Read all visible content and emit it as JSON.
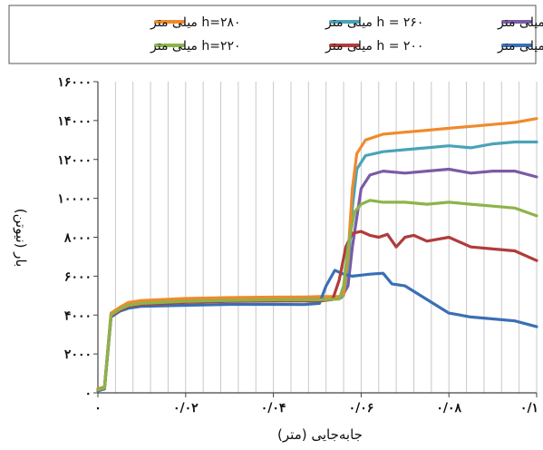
{
  "chart_data": {
    "type": "line",
    "xlabel": "جابه‌جایی (متر)",
    "ylabel": "بار (نیوتن)",
    "xlim": [
      0,
      0.1
    ],
    "ylim": [
      0,
      16000
    ],
    "x_ticks": [
      0,
      0.02,
      0.04,
      0.06,
      0.08,
      0.1
    ],
    "x_tick_labels": [
      "۰",
      "۰/۰۲",
      "۰/۰۴",
      "۰/۰۶",
      "۰/۰۸",
      "۰/۱"
    ],
    "y_ticks": [
      0,
      2000,
      4000,
      6000,
      8000,
      10000,
      12000,
      14000,
      16000
    ],
    "y_tick_labels": [
      "۰",
      "۲۰۰۰",
      "۴۰۰۰",
      "۶۰۰۰",
      "۸۰۰۰",
      "۱۰۰۰۰",
      "۱۲۰۰۰",
      "۱۴۰۰۰",
      "۱۶۰۰۰"
    ],
    "grid": "vertical",
    "legend_position": "top",
    "series": [
      {
        "name": "h = ۲۴۰ میلی متر",
        "color": "#7b5aa6",
        "x": [
          0,
          0.0015,
          0.003,
          0.005,
          0.007,
          0.01,
          0.02,
          0.03,
          0.04,
          0.047,
          0.0505,
          0.054,
          0.0555,
          0.057,
          0.058,
          0.06,
          0.062,
          0.065,
          0.07,
          0.075,
          0.08,
          0.085,
          0.09,
          0.095,
          0.1
        ],
        "y": [
          200,
          300,
          4000,
          4300,
          4550,
          4650,
          4750,
          4800,
          4820,
          4830,
          4830,
          4850,
          4900,
          5500,
          7500,
          10500,
          11200,
          11400,
          11300,
          11400,
          11500,
          11300,
          11400,
          11400,
          11100
        ]
      },
      {
        "name": "h = ۲۶۰ میلی متر",
        "color": "#4aa3b8",
        "x": [
          0,
          0.0015,
          0.003,
          0.005,
          0.007,
          0.01,
          0.02,
          0.03,
          0.04,
          0.047,
          0.0505,
          0.055,
          0.056,
          0.057,
          0.058,
          0.059,
          0.061,
          0.065,
          0.07,
          0.075,
          0.08,
          0.085,
          0.09,
          0.095,
          0.1
        ],
        "y": [
          200,
          300,
          4050,
          4350,
          4600,
          4700,
          4800,
          4850,
          4870,
          4880,
          4880,
          4900,
          5000,
          6500,
          9500,
          11500,
          12200,
          12400,
          12500,
          12600,
          12700,
          12600,
          12800,
          12900,
          12900
        ]
      },
      {
        "name": "h=۲۸۰ میلی متر",
        "color": "#f08a2c",
        "x": [
          0,
          0.0015,
          0.003,
          0.005,
          0.007,
          0.01,
          0.02,
          0.03,
          0.04,
          0.047,
          0.0505,
          0.055,
          0.056,
          0.057,
          0.058,
          0.059,
          0.061,
          0.065,
          0.07,
          0.075,
          0.08,
          0.085,
          0.09,
          0.095,
          0.1
        ],
        "y": [
          200,
          300,
          4100,
          4400,
          4650,
          4750,
          4850,
          4900,
          4920,
          4930,
          4950,
          4950,
          5050,
          7000,
          10500,
          12300,
          13000,
          13300,
          13400,
          13500,
          13600,
          13700,
          13800,
          13900,
          14100
        ]
      },
      {
        "name": "h = ۱۸۰ میلی متر",
        "color": "#3a6fb5",
        "x": [
          0,
          0.0015,
          0.003,
          0.005,
          0.007,
          0.01,
          0.02,
          0.03,
          0.04,
          0.047,
          0.0505,
          0.052,
          0.054,
          0.056,
          0.058,
          0.06,
          0.062,
          0.065,
          0.067,
          0.07,
          0.075,
          0.08,
          0.085,
          0.09,
          0.095,
          0.1
        ],
        "y": [
          100,
          200,
          3900,
          4200,
          4350,
          4450,
          4500,
          4550,
          4550,
          4540,
          4600,
          5500,
          6300,
          6100,
          6000,
          6050,
          6100,
          6150,
          5600,
          5500,
          4800,
          4100,
          3900,
          3800,
          3700,
          3400
        ]
      },
      {
        "name": "h = ۲۰۰ میلی متر",
        "color": "#b03c3c",
        "x": [
          0,
          0.0015,
          0.003,
          0.005,
          0.007,
          0.01,
          0.02,
          0.03,
          0.04,
          0.047,
          0.0505,
          0.0535,
          0.055,
          0.0565,
          0.058,
          0.06,
          0.062,
          0.064,
          0.066,
          0.068,
          0.07,
          0.072,
          0.075,
          0.08,
          0.085,
          0.09,
          0.095,
          0.1
        ],
        "y": [
          150,
          250,
          3950,
          4250,
          4450,
          4550,
          4650,
          4700,
          4720,
          4720,
          4720,
          4800,
          5800,
          7500,
          8200,
          8300,
          8100,
          8000,
          8150,
          7500,
          8000,
          8100,
          7800,
          8000,
          7500,
          7400,
          7300,
          6800
        ]
      },
      {
        "name": "h=۲۲۰ میلی متر",
        "color": "#8bb44a",
        "x": [
          0,
          0.0015,
          0.003,
          0.005,
          0.007,
          0.01,
          0.02,
          0.03,
          0.04,
          0.047,
          0.0505,
          0.055,
          0.056,
          0.057,
          0.0585,
          0.06,
          0.062,
          0.065,
          0.07,
          0.075,
          0.08,
          0.085,
          0.09,
          0.095,
          0.1
        ],
        "y": [
          150,
          250,
          4000,
          4300,
          4500,
          4600,
          4700,
          4750,
          4780,
          4780,
          4780,
          4820,
          5500,
          7500,
          9300,
          9700,
          9900,
          9800,
          9800,
          9700,
          9800,
          9700,
          9600,
          9500,
          9100
        ]
      }
    ]
  }
}
